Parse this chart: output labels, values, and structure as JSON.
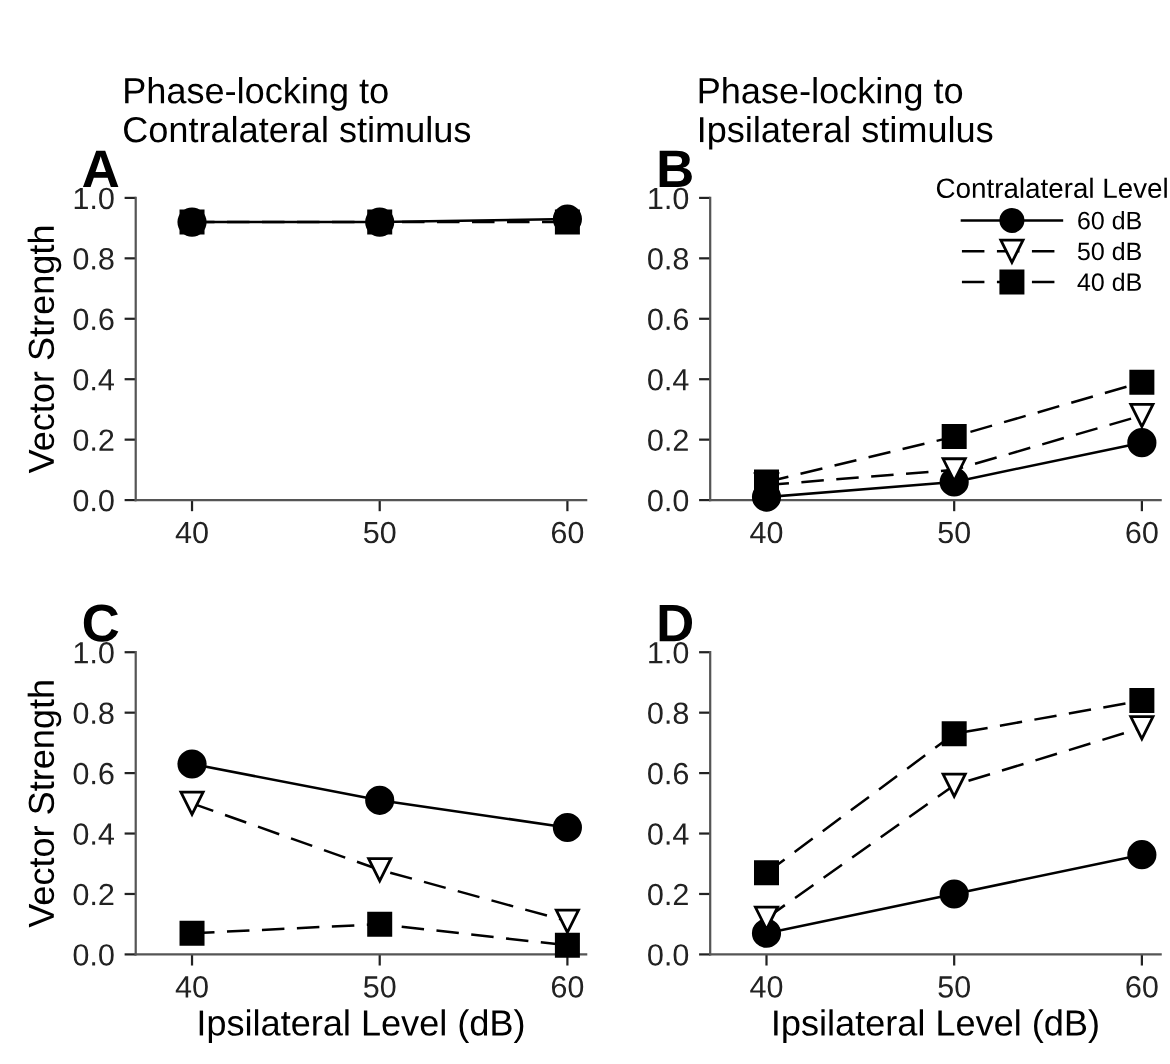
{
  "chart_data": [
    {
      "type": "line",
      "title": "Phase-locking to\nContralateral stimulus",
      "annotations": [
        "A"
      ],
      "ylabel": "Vector Strength",
      "x": [
        40,
        50,
        60
      ],
      "xlim": [
        37,
        61
      ],
      "xticks": [
        40,
        50,
        60
      ],
      "ylim": [
        0,
        1.0
      ],
      "yticks": [
        {
          "value": 0,
          "label": "0.0"
        },
        {
          "value": 0.2,
          "label": "0.2"
        },
        {
          "value": 0.4,
          "label": "0.4"
        },
        {
          "value": 0.6,
          "label": "0.6"
        },
        {
          "value": 0.8,
          "label": "0.8"
        },
        {
          "value": 1.0,
          "label": "1.0"
        }
      ],
      "series": [
        {
          "color": "#000000",
          "marker": "circle",
          "line_style": "solid",
          "values": [
            0.92,
            0.92,
            0.93
          ]
        },
        {
          "color": "#000000",
          "marker": "square",
          "line_style": "dashed",
          "values": [
            0.92,
            0.92,
            0.92
          ]
        }
      ]
    },
    {
      "type": "line",
      "title": "Phase-locking to\nIpsilateral stimulus",
      "annotations": [
        "B"
      ],
      "legend": "top right",
      "legend_title": "Contralateral Level",
      "x": [
        40,
        50,
        60
      ],
      "xlim": [
        37,
        61
      ],
      "xticks": [
        40,
        50,
        60
      ],
      "ylim": [
        0,
        1.0
      ],
      "yticks": [
        {
          "value": 0,
          "label": "0.0"
        },
        {
          "value": 0.2,
          "label": "0.2"
        },
        {
          "value": 0.4,
          "label": "0.4"
        },
        {
          "value": 0.6,
          "label": "0.6"
        },
        {
          "value": 0.8,
          "label": "0.8"
        },
        {
          "value": 1.0,
          "label": "1.0"
        }
      ],
      "series": [
        {
          "name": "60 dB",
          "color": "#000000",
          "marker": "circle",
          "line_style": "solid",
          "values": [
            0.01,
            0.06,
            0.19
          ]
        },
        {
          "name": "50 dB",
          "color": "#000000",
          "marker": "triangle",
          "line_style": "dashed",
          "values": [
            0.05,
            0.1,
            0.28
          ]
        },
        {
          "name": "40 dB",
          "color": "#000000",
          "marker": "square",
          "line_style": "dashed",
          "values": [
            0.06,
            0.21,
            0.39
          ]
        }
      ]
    },
    {
      "type": "line",
      "annotations": [
        "C"
      ],
      "ylabel": "Vector Strength",
      "xlabel": "Ipsilateral Level (dB)",
      "x": [
        40,
        50,
        60
      ],
      "xlim": [
        37,
        61
      ],
      "xticks": [
        40,
        50,
        60
      ],
      "ylim": [
        0,
        1.0
      ],
      "yticks": [
        {
          "value": 0,
          "label": "0.0"
        },
        {
          "value": 0.2,
          "label": "0.2"
        },
        {
          "value": 0.4,
          "label": "0.4"
        },
        {
          "value": 0.6,
          "label": "0.6"
        },
        {
          "value": 0.8,
          "label": "0.8"
        },
        {
          "value": 1.0,
          "label": "1.0"
        }
      ],
      "series": [
        {
          "color": "#000000",
          "marker": "circle",
          "line_style": "solid",
          "values": [
            0.63,
            0.51,
            0.42
          ]
        },
        {
          "color": "#000000",
          "marker": "triangle",
          "line_style": "dashed",
          "values": [
            0.5,
            0.28,
            0.11
          ]
        },
        {
          "color": "#000000",
          "marker": "square",
          "line_style": "dashed",
          "values": [
            0.07,
            0.1,
            0.03
          ]
        }
      ]
    },
    {
      "type": "line",
      "annotations": [
        "D"
      ],
      "xlabel": "Ipsilateral Level (dB)",
      "x": [
        40,
        50,
        60
      ],
      "xlim": [
        37,
        61
      ],
      "xticks": [
        40,
        50,
        60
      ],
      "ylim": [
        0,
        1.0
      ],
      "yticks": [
        {
          "value": 0,
          "label": "0.0"
        },
        {
          "value": 0.2,
          "label": "0.2"
        },
        {
          "value": 0.4,
          "label": "0.4"
        },
        {
          "value": 0.6,
          "label": "0.6"
        },
        {
          "value": 0.8,
          "label": "0.8"
        },
        {
          "value": 1.0,
          "label": "1.0"
        }
      ],
      "series": [
        {
          "color": "#000000",
          "marker": "circle",
          "line_style": "solid",
          "values": [
            0.07,
            0.2,
            0.33
          ]
        },
        {
          "color": "#000000",
          "marker": "triangle",
          "line_style": "dashed",
          "values": [
            0.12,
            0.56,
            0.75
          ]
        },
        {
          "color": "#000000",
          "marker": "square",
          "line_style": "dashed",
          "values": [
            0.27,
            0.73,
            0.84
          ]
        }
      ]
    }
  ]
}
